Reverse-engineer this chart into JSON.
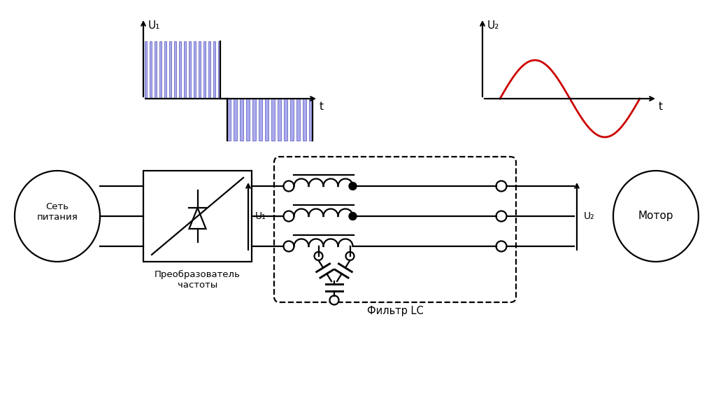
{
  "bg_color": "#ffffff",
  "line_color": "#000000",
  "blue_color": "#3333aa",
  "blue_fill": "#aaaaee",
  "red_color": "#cc0000",
  "fig_width": 10.24,
  "fig_height": 5.96,
  "label_sety": "Сеть\nпитания",
  "label_conv": "Преобразователь\nчастоты",
  "label_filter": "Фильтр LC",
  "label_motor": "Мотор",
  "label_U1": "U₁",
  "label_U2": "U₂",
  "label_t": "t"
}
